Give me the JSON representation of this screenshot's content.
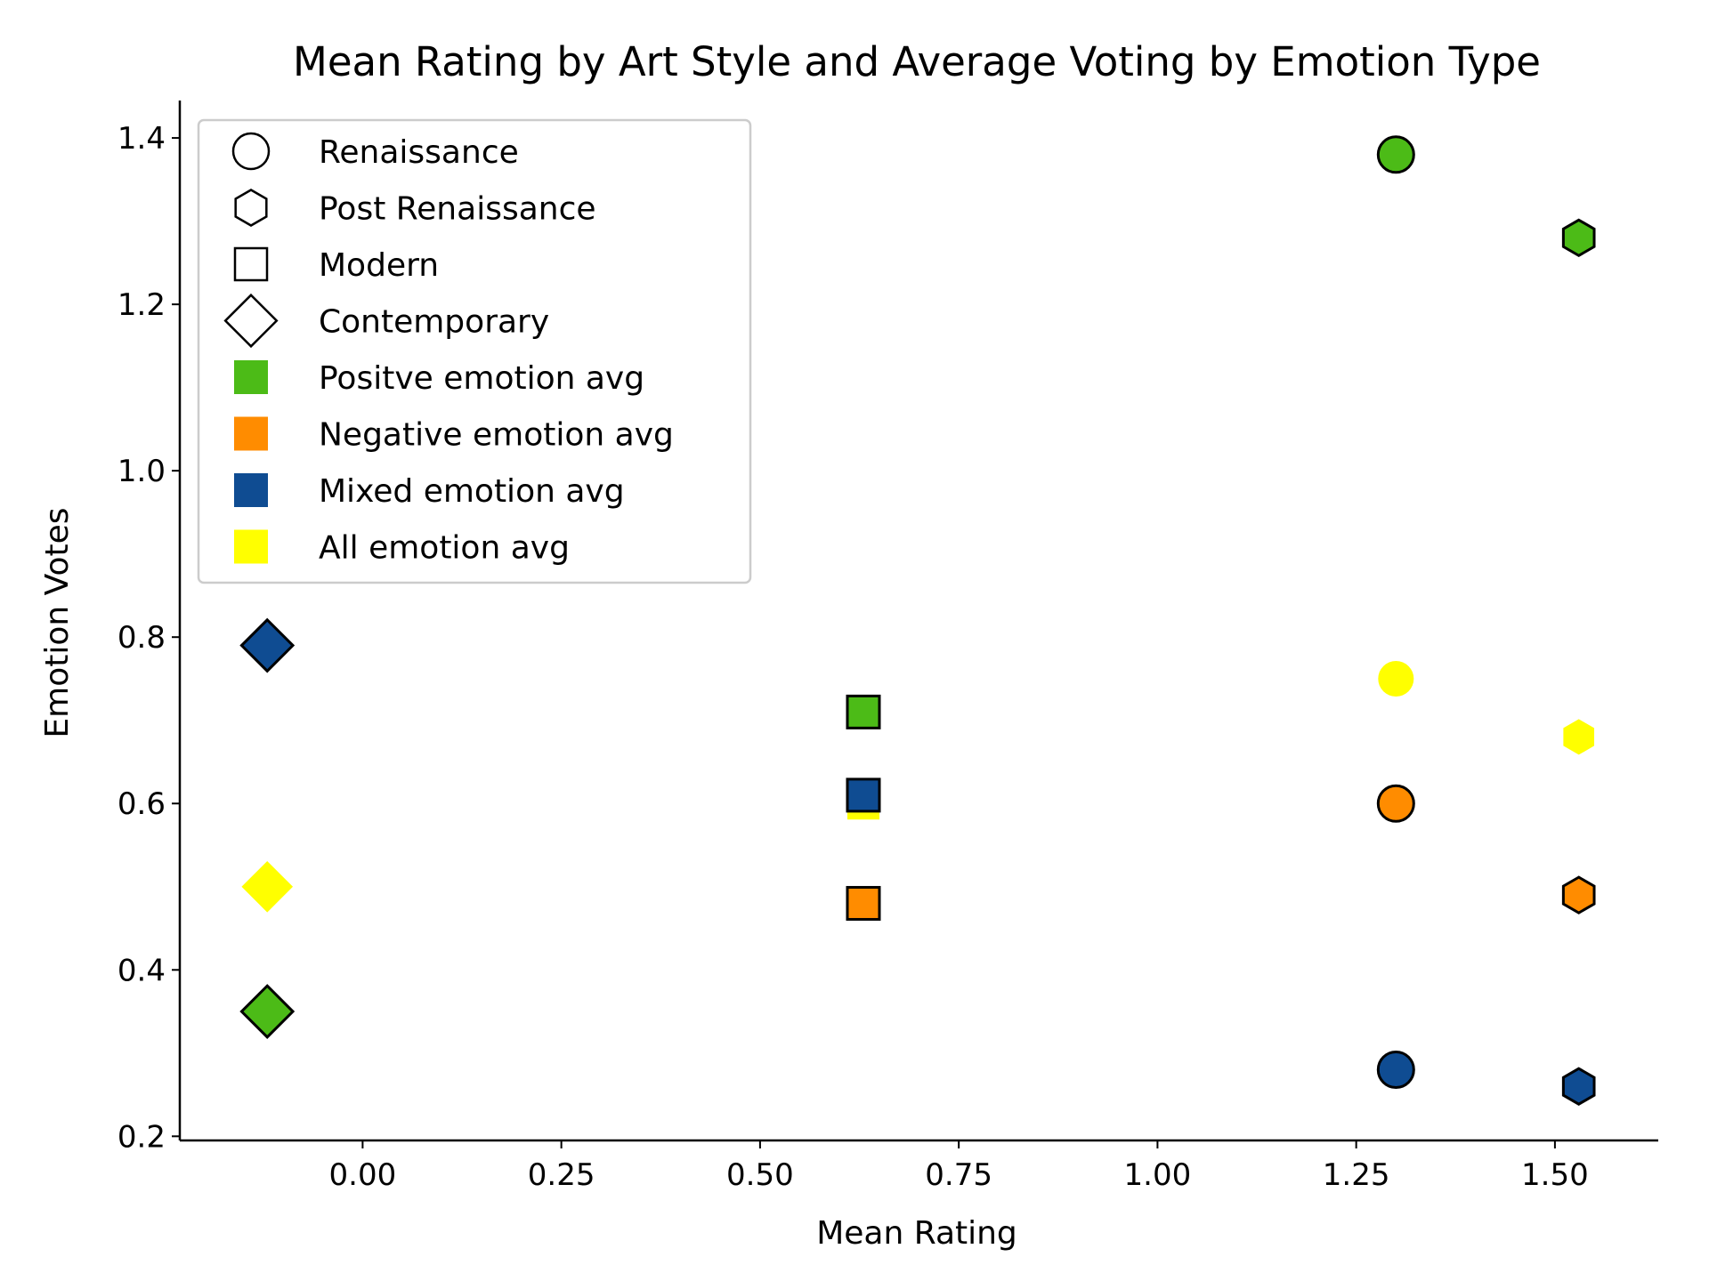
{
  "chart_data": {
    "type": "scatter",
    "title": "Mean Rating by Art Style and Average Voting by Emotion Type",
    "xlabel": "Mean Rating",
    "ylabel": "Emotion Votes",
    "xlim": [
      -0.23,
      1.63
    ],
    "ylim": [
      0.195,
      1.445
    ],
    "xticks": [
      0.0,
      0.25,
      0.5,
      0.75,
      1.0,
      1.25,
      1.5
    ],
    "xtick_labels": [
      "0.00",
      "0.25",
      "0.50",
      "0.75",
      "1.00",
      "1.25",
      "1.50"
    ],
    "yticks": [
      0.2,
      0.4,
      0.6,
      0.8,
      1.0,
      1.2,
      1.4
    ],
    "ytick_labels": [
      "0.2",
      "0.4",
      "0.6",
      "0.8",
      "1.0",
      "1.2",
      "1.4"
    ],
    "grid": false,
    "legend_position": "top-left",
    "styles": [
      {
        "name": "Renaissance",
        "marker": "circle",
        "x": 1.3
      },
      {
        "name": "Post Renaissance",
        "marker": "hexagon",
        "x": 1.53
      },
      {
        "name": "Modern",
        "marker": "square",
        "x": 0.63
      },
      {
        "name": "Contemporary",
        "marker": "diamond",
        "x": -0.12
      }
    ],
    "series": [
      {
        "name": "Positve emotion avg",
        "color": "#4cbb17",
        "outlined": true,
        "values": [
          1.38,
          1.28,
          0.71,
          0.35
        ]
      },
      {
        "name": "Negative emotion avg",
        "color": "#ff8c00",
        "outlined": true,
        "values": [
          0.6,
          0.49,
          0.48,
          null
        ]
      },
      {
        "name": "Mixed emotion avg",
        "color": "#0f4c92",
        "outlined": true,
        "values": [
          0.28,
          0.26,
          0.61,
          0.79
        ]
      },
      {
        "name": "All emotion avg",
        "color": "#ffff00",
        "outlined": false,
        "values": [
          0.75,
          0.68,
          0.6,
          0.5
        ]
      }
    ]
  }
}
